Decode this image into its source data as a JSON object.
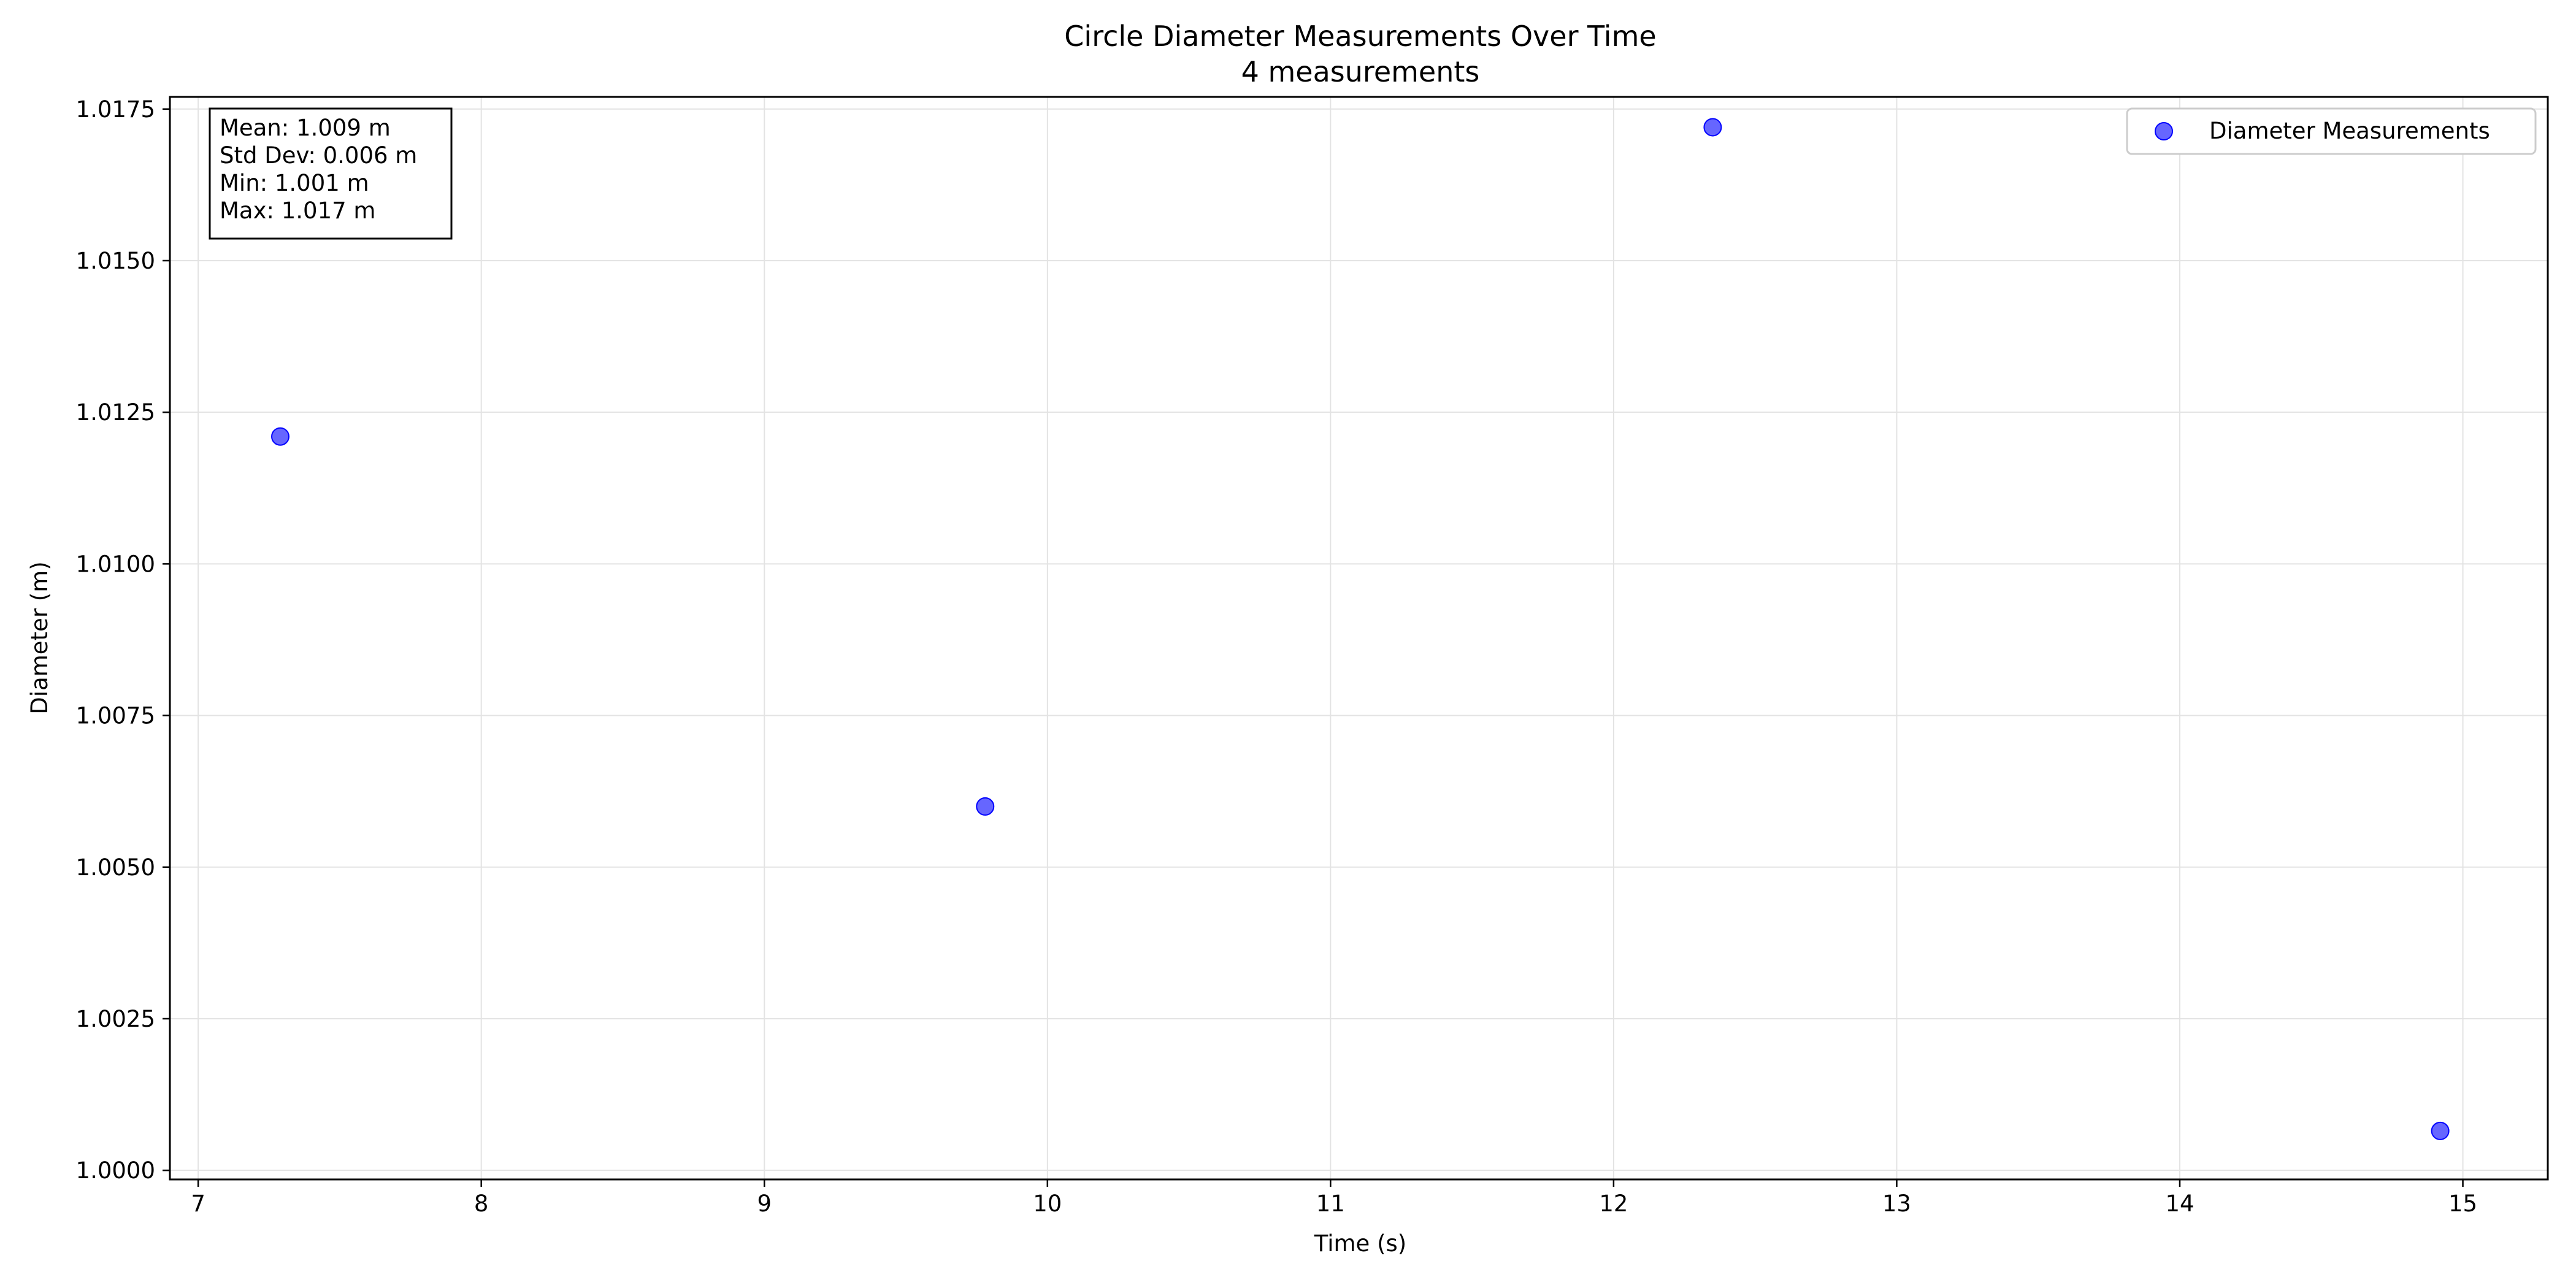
{
  "chart_data": {
    "type": "scatter",
    "title": "Circle Diameter Measurements Over Time",
    "subtitle": "4 measurements",
    "xlabel": "Time (s)",
    "ylabel": "Diameter (m)",
    "xlim": [
      6.9,
      15.3
    ],
    "ylim": [
      0.99985,
      1.0177
    ],
    "grid": true,
    "legend_position": "top-right",
    "xticks": [
      7,
      8,
      9,
      10,
      11,
      12,
      13,
      14,
      15
    ],
    "yticks": [
      1.0,
      1.0025,
      1.005,
      1.0075,
      1.01,
      1.0125,
      1.015,
      1.0175
    ],
    "ytick_labels": [
      "1.0000",
      "1.0025",
      "1.0050",
      "1.0075",
      "1.0100",
      "1.0125",
      "1.0150",
      "1.0175"
    ],
    "series": [
      {
        "name": "Diameter Measurements",
        "color": "#0000ff",
        "x": [
          7.29,
          9.78,
          12.35,
          14.92
        ],
        "y": [
          1.0121,
          1.006,
          1.0172,
          1.00065
        ]
      }
    ],
    "stats_box": {
      "mean": "Mean: 1.009 m",
      "std": "Std Dev: 0.006 m",
      "min": "Min: 1.001 m",
      "max": "Max: 1.017 m"
    }
  }
}
